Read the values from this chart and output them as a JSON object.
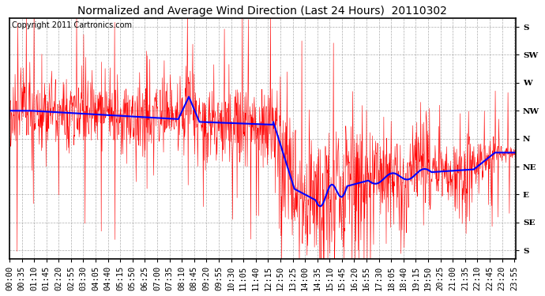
{
  "title": "Normalized and Average Wind Direction (Last 24 Hours)  20110302",
  "copyright": "Copyright 2011 Cartronics.com",
  "ytick_labels": [
    "S",
    "SE",
    "E",
    "NE",
    "N",
    "NW",
    "W",
    "SW",
    "S"
  ],
  "ytick_positions": [
    8,
    7,
    6,
    5,
    4,
    3,
    2,
    1,
    0
  ],
  "ylim": [
    -0.3,
    8.3
  ],
  "background_color": "#ffffff",
  "plot_bg_color": "#ffffff",
  "grid_color": "#999999",
  "red_color": "#ff0000",
  "blue_color": "#0000ff",
  "title_fontsize": 10,
  "copyright_fontsize": 7,
  "tick_fontsize": 7.5,
  "xtick_interval_min": 35
}
